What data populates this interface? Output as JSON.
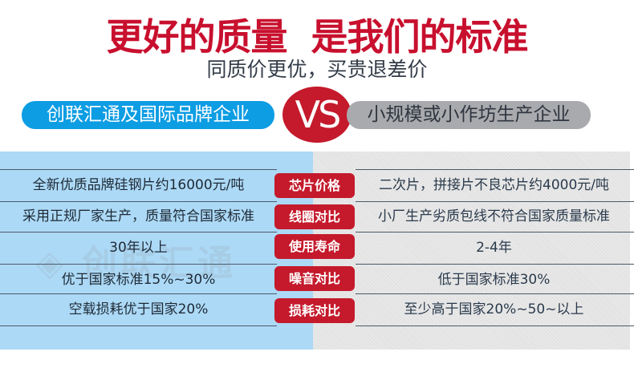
{
  "header": {
    "title": "更好的质量  是我们的标准",
    "subtitle": "同质价更优，买贵退差价"
  },
  "comparison": {
    "left_label": "创联汇通及国际品牌企业",
    "vs_label": "VS",
    "right_label": "小规模或小作坊生产企业"
  },
  "watermark": "创联汇通",
  "colors": {
    "accent_red": "#c41a2c",
    "brand_blue": "#0d9de3",
    "panel_blue": "#acd9f6",
    "panel_grey": "#e2e2e2"
  },
  "rows": [
    {
      "category": "芯片价格",
      "ours": "全新优质品牌硅钢片约16000元/吨",
      "theirs": "二次片，拼接片不良芯片约4000元/吨"
    },
    {
      "category": "线圈对比",
      "ours": "采用正规厂家生产，质量符合国家标准",
      "theirs": "小厂生产劣质包线不符合国家质量标准"
    },
    {
      "category": "使用寿命",
      "ours": "30年以上",
      "theirs": "2-4年"
    },
    {
      "category": "噪音对比",
      "ours": "优于国家标准15%~30%",
      "theirs": "低于国家标准30%"
    },
    {
      "category": "损耗对比",
      "ours": "空载损耗优于国家20%",
      "theirs": "至少高于国家20%~50~以上"
    }
  ]
}
